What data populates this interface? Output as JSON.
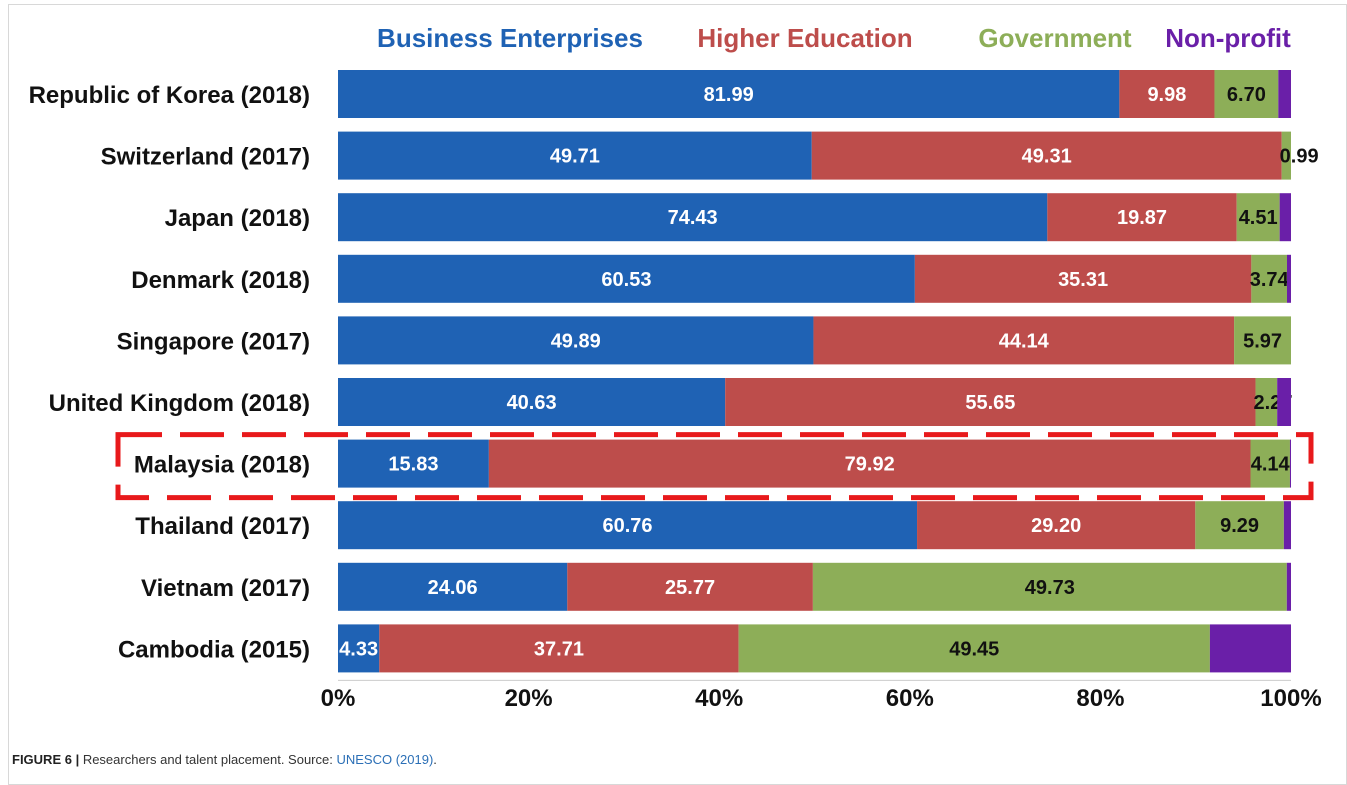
{
  "chart_data": {
    "type": "bar",
    "orientation": "horizontal",
    "stacked": true,
    "categories": [
      "Republic of Korea (2018)",
      "Switzerland (2017)",
      "Japan (2018)",
      "Denmark (2018)",
      "Singapore (2017)",
      "United Kingdom (2018)",
      "Malaysia (2018)",
      "Thailand (2017)",
      "Vietnam (2017)",
      "Cambodia (2015)"
    ],
    "series": [
      {
        "name": "Business Enterprises",
        "color": "#1f62b4",
        "label_color": "#ffffff",
        "values": [
          81.99,
          49.71,
          74.43,
          60.53,
          49.89,
          40.63,
          15.83,
          60.76,
          24.06,
          4.33
        ]
      },
      {
        "name": "Higher Education",
        "color": "#bd4d4b",
        "label_color": "#ffffff",
        "values": [
          9.98,
          49.31,
          19.87,
          35.31,
          44.14,
          55.65,
          79.92,
          29.2,
          25.77,
          37.71
        ]
      },
      {
        "name": "Government",
        "color": "#8dae58",
        "label_color": "#111111",
        "values": [
          6.7,
          0.99,
          4.51,
          3.74,
          5.97,
          2.27,
          4.14,
          9.29,
          49.73,
          49.45
        ]
      },
      {
        "name": "Non-profit",
        "color": "#6a1fa8",
        "label_color": "#111111",
        "values": [
          1.33,
          0,
          1.19,
          0.42,
          0,
          1.45,
          0.11,
          0.75,
          0.44,
          8.51
        ]
      }
    ],
    "value_labels": [
      [
        "81.99",
        "9.98",
        "6.70",
        ""
      ],
      [
        "49.71",
        "49.31",
        "0.99",
        ""
      ],
      [
        "74.43",
        "19.87",
        "4.51",
        ""
      ],
      [
        "60.53",
        "35.31",
        "3.74",
        ""
      ],
      [
        "49.89",
        "44.14",
        "5.97",
        ""
      ],
      [
        "40.63",
        "55.65",
        "2.27",
        ""
      ],
      [
        "15.83",
        "79.92",
        "4.14",
        ""
      ],
      [
        "60.76",
        "29.20",
        "9.29",
        ""
      ],
      [
        "24.06",
        "25.77",
        "49.73",
        ""
      ],
      [
        "4.33",
        "37.71",
        "49.45",
        ""
      ]
    ],
    "xlim": [
      0,
      100
    ],
    "x_ticks": [
      "0%",
      "20%",
      "40%",
      "60%",
      "80%",
      "100%"
    ],
    "legend_position": "top",
    "highlight": {
      "category": "Malaysia (2018)",
      "style": "red dashed box"
    }
  },
  "caption": {
    "figure": "FIGURE 6 |",
    "text": " Researchers and talent placement. Source: ",
    "source": "UNESCO (2019)",
    "end": "."
  }
}
